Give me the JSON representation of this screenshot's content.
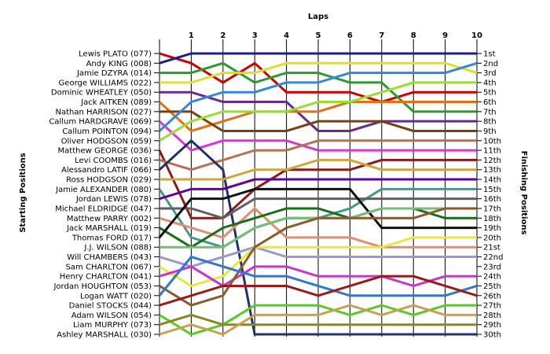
{
  "chart_data": {
    "type": "line",
    "title": "",
    "xlabel": "Laps",
    "ylabel_left": "Starting Positions",
    "ylabel_right": "Finishing Positions",
    "x": [
      0,
      1,
      2,
      3,
      4,
      5,
      6,
      7,
      8,
      9,
      10
    ],
    "x_tick_labels": [
      "1",
      "2",
      "3",
      "4",
      "5",
      "6",
      "7",
      "8",
      "9",
      "10"
    ],
    "ylim": [
      1,
      30
    ],
    "y_inverted": true,
    "grid": "vertical",
    "finishing_labels": [
      "1st",
      "2nd",
      "3rd",
      "4th",
      "5th",
      "6th",
      "7th",
      "8th",
      "9th",
      "10th",
      "11th",
      "12th",
      "13th",
      "14th",
      "15th",
      "16th",
      "17th",
      "18th",
      "19th",
      "20th",
      "21st",
      "22nd",
      "23rd",
      "24th",
      "25th",
      "26th",
      "27th",
      "28th",
      "29th",
      "30th"
    ],
    "series": [
      {
        "name": "Lewis PLATO (077)",
        "color": "#cc0000",
        "values": [
          1,
          2,
          4,
          2,
          5,
          5,
          5,
          6,
          5,
          5,
          5
        ]
      },
      {
        "name": "Andy KING (008)",
        "color": "#1c1c8c",
        "values": [
          2,
          1,
          1,
          1,
          1,
          1,
          1,
          1,
          1,
          1,
          1
        ]
      },
      {
        "name": "Jamie DZYRA (014)",
        "color": "#2e9a2e",
        "values": [
          3,
          3,
          2,
          4,
          3,
          3,
          4,
          4,
          7,
          7,
          7
        ]
      },
      {
        "name": "George WILLIAMS (022)",
        "color": "#dddd33",
        "values": [
          4,
          4,
          3,
          3,
          2,
          2,
          2,
          2,
          2,
          2,
          3
        ]
      },
      {
        "name": "Dominic WHEATLEY (050)",
        "color": "#6a2a8a",
        "values": [
          5,
          5,
          6,
          6,
          6,
          9,
          9,
          8,
          8,
          8,
          8
        ]
      },
      {
        "name": "Jack AITKEN (089)",
        "color": "#e0701a",
        "values": [
          6,
          9,
          8,
          7,
          7,
          7,
          6,
          6,
          6,
          6,
          6
        ]
      },
      {
        "name": "Nathan HARRISON (027)",
        "color": "#7a4010",
        "values": [
          7,
          7,
          9,
          9,
          9,
          8,
          8,
          8,
          9,
          9,
          9
        ]
      },
      {
        "name": "Callum HARDGRAVE (069)",
        "color": "#dd33dd",
        "values": [
          8,
          11,
          10,
          10,
          10,
          11,
          11,
          11,
          11,
          11,
          11
        ]
      },
      {
        "name": "Callum POINTON (094)",
        "color": "#3388dd",
        "values": [
          9,
          6,
          5,
          5,
          4,
          4,
          3,
          3,
          3,
          3,
          2
        ]
      },
      {
        "name": "Oliver HODGSON (059)",
        "color": "#99dd33",
        "values": [
          10,
          8,
          7,
          7,
          7,
          6,
          6,
          5,
          4,
          4,
          4
        ]
      },
      {
        "name": "Matthew GEORGE (036)",
        "color": "#8b1a1a",
        "values": [
          11,
          18,
          18,
          15,
          13,
          13,
          13,
          12,
          12,
          12,
          12
        ]
      },
      {
        "name": "Levi COOMBS (016)",
        "color": "#b87050",
        "values": [
          12,
          13,
          12,
          11,
          11,
          10,
          10,
          10,
          10,
          10,
          10
        ]
      },
      {
        "name": "Alessandro LATIF (066)",
        "color": "#223366",
        "values": [
          13,
          10,
          13,
          30,
          30,
          30,
          30,
          30,
          30,
          30,
          30
        ]
      },
      {
        "name": "Ross HODGSON (029)",
        "color": "#cfa540",
        "values": [
          14,
          14,
          14,
          13,
          13,
          12,
          12,
          13,
          13,
          13,
          13
        ]
      },
      {
        "name": "Jamie ALEXANDER (080)",
        "color": "#449988",
        "values": [
          15,
          20,
          21,
          19,
          18,
          18,
          17,
          15,
          15,
          15,
          15
        ]
      },
      {
        "name": "Jordan LEWIS (078)",
        "color": "#660099",
        "values": [
          16,
          15,
          15,
          14,
          14,
          14,
          14,
          14,
          14,
          14,
          14
        ]
      },
      {
        "name": "Michael ELDRIDGE (047)",
        "color": "#606060",
        "values": [
          17,
          17,
          18,
          16,
          16,
          16,
          16,
          16,
          16,
          16,
          16
        ]
      },
      {
        "name": "Matthew PARRY (002)",
        "color": "#e08f70",
        "values": [
          18,
          19,
          20,
          17,
          20,
          20,
          20,
          21,
          21,
          21,
          21
        ]
      },
      {
        "name": "Jack MARSHALL (019)",
        "color": "#1a6e1a",
        "values": [
          19,
          21,
          19,
          18,
          17,
          17,
          18,
          17,
          17,
          18,
          18
        ]
      },
      {
        "name": "Thomas FORD (017)",
        "color": "#111111",
        "values": [
          20,
          16,
          16,
          15,
          15,
          15,
          15,
          19,
          19,
          19,
          19
        ]
      },
      {
        "name": "J.J. WILSON (088)",
        "color": "#77bb77",
        "values": [
          21,
          21,
          21,
          19,
          18,
          18,
          18,
          17,
          17,
          17,
          17
        ]
      },
      {
        "name": "Will CHAMBERS (043)",
        "color": "#9999cc",
        "values": [
          22,
          23,
          22,
          21,
          22,
          22,
          22,
          22,
          22,
          22,
          22
        ]
      },
      {
        "name": "Sam CHARLTON (067)",
        "color": "#e6e645",
        "values": [
          23,
          25,
          24,
          21,
          21,
          21,
          21,
          21,
          20,
          20,
          20
        ]
      },
      {
        "name": "Henry CHARLTON (041)",
        "color": "#cc33cc",
        "values": [
          24,
          23,
          25,
          23,
          23,
          24,
          24,
          24,
          25,
          24,
          24
        ]
      },
      {
        "name": "Jordan HOUGHTON (053)",
        "color": "#8b5a2b",
        "values": [
          25,
          27,
          26,
          21,
          19,
          18,
          18,
          18,
          18,
          17,
          17
        ]
      },
      {
        "name": "Logan WATT (020)",
        "color": "#3377cc",
        "values": [
          26,
          22,
          23,
          24,
          24,
          25,
          26,
          26,
          26,
          26,
          25
        ]
      },
      {
        "name": "Daniel STOCKS (044)",
        "color": "#9a1a1a",
        "values": [
          27,
          26,
          25,
          25,
          25,
          26,
          25,
          24,
          24,
          25,
          26
        ]
      },
      {
        "name": "Adam WILSON (054)",
        "color": "#55cc22",
        "values": [
          28,
          30,
          29,
          27,
          27,
          27,
          28,
          27,
          28,
          27,
          27
        ]
      },
      {
        "name": "Liam MURPHY (073)",
        "color": "#888822",
        "values": [
          29,
          28,
          29,
          29,
          29,
          29,
          29,
          29,
          29,
          29,
          29
        ]
      },
      {
        "name": "Ashley MARSHALL (030)",
        "color": "#c8a050",
        "values": [
          30,
          29,
          30,
          28,
          28,
          28,
          27,
          28,
          27,
          28,
          28
        ]
      }
    ]
  }
}
